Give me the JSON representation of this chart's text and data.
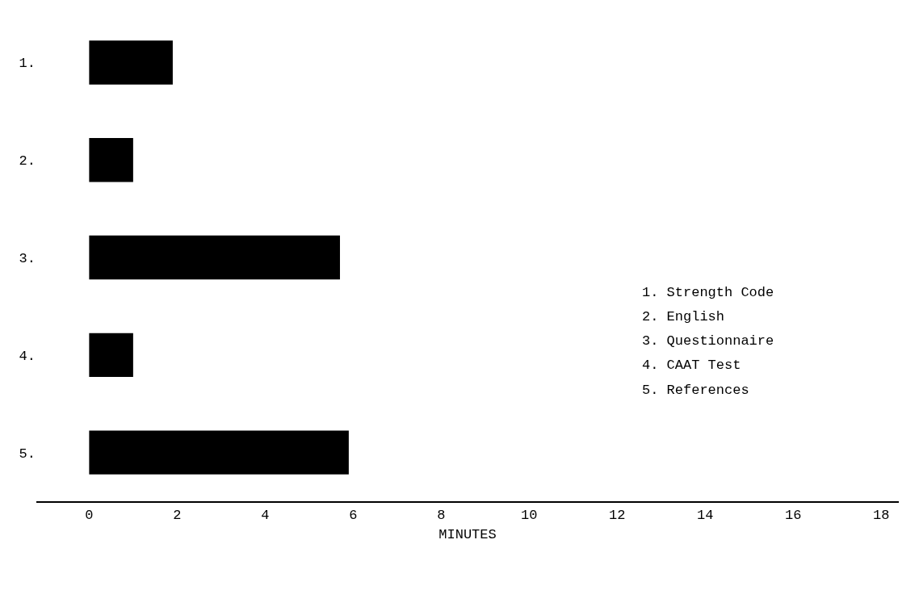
{
  "chart_data": {
    "type": "bar",
    "orientation": "horizontal",
    "categories": [
      "1.",
      "2.",
      "3.",
      "4.",
      "5."
    ],
    "values": [
      1.9,
      1.0,
      5.7,
      1.0,
      5.9
    ],
    "color": "#000000",
    "xlabel": "MINUTES",
    "xlim": [
      -1.2,
      18.4
    ],
    "xticks": [
      0,
      2,
      4,
      6,
      8,
      10,
      12,
      14,
      16,
      18
    ],
    "annotations": [
      "1. Strength Code",
      "2. English",
      "3. Questionnaire",
      "4. CAAT Test",
      "5. References"
    ]
  }
}
